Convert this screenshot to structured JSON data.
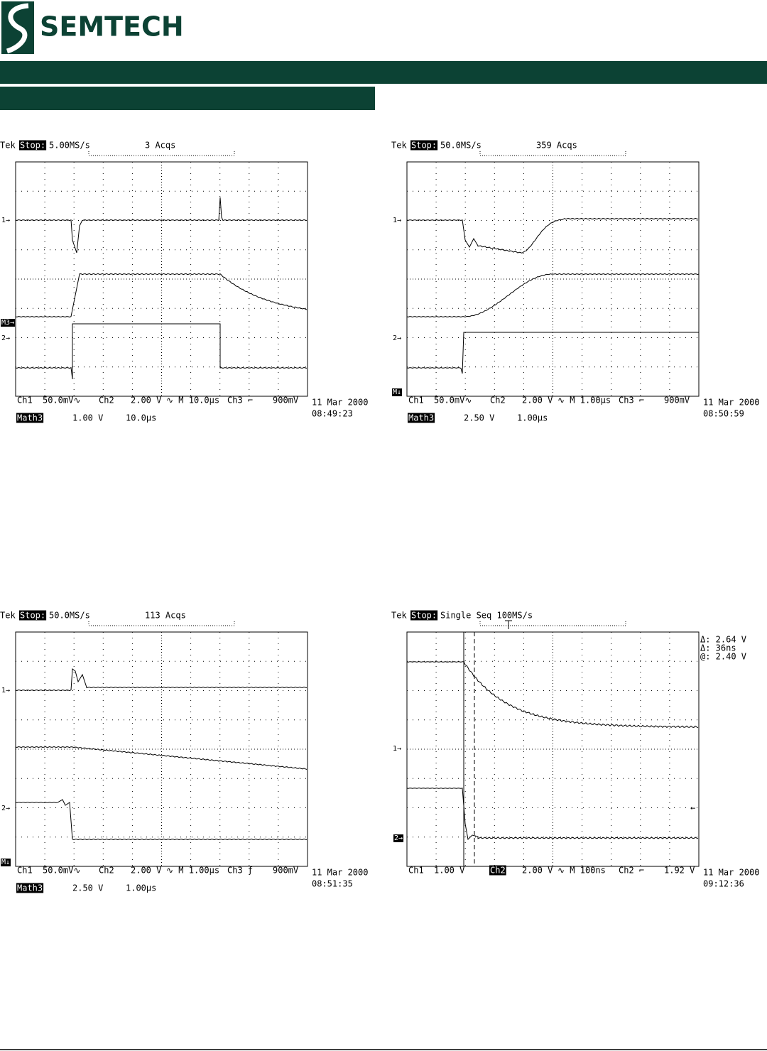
{
  "header": {
    "logo": "SEMTECH"
  },
  "scopes": [
    {
      "brand": "Tek",
      "state": "Stop:",
      "rate": "5.00MS/s",
      "acqs": "3 Acqs",
      "markers": [
        "1→",
        "M3→",
        "2→"
      ],
      "settings": [
        "Ch1",
        "50.0mV∿",
        "Ch2",
        "2.00 V",
        "∿ M 10.0µs",
        "Ch3 ⌐",
        "900mV"
      ],
      "math": [
        "Math3",
        "1.00 V",
        "10.0µs"
      ],
      "date": "11 Mar 2000",
      "time": "08:49:23"
    },
    {
      "brand": "Tek",
      "state": "Stop:",
      "rate": "50.0MS/s",
      "acqs": "359 Acqs",
      "markers": [
        "1→",
        "2→",
        "M↓"
      ],
      "settings": [
        "Ch1",
        "50.0mV∿",
        "Ch2",
        "2.00 V",
        "∿ M 1.00µs",
        "Ch3 ⌐",
        "900mV"
      ],
      "math": [
        "Math3",
        "2.50 V",
        "1.00µs"
      ],
      "date": "11 Mar 2000",
      "time": "08:50:59"
    },
    {
      "brand": "Tek",
      "state": "Stop:",
      "rate": "50.0MS/s",
      "acqs": "113 Acqs",
      "markers": [
        "1→",
        "2→",
        "M↓"
      ],
      "settings": [
        "Ch1",
        "50.0mV∿",
        "Ch2",
        "2.00 V",
        "∿ M 1.00µs",
        "Ch3 ƒ",
        "900mV"
      ],
      "math": [
        "Math3",
        "2.50 V",
        "1.00µs"
      ],
      "date": "11 Mar 2000",
      "time": "08:51:35"
    },
    {
      "brand": "Tek",
      "state": "Stop:",
      "rate": "Single Seq  100MS/s",
      "markers": [
        "1→",
        "2→"
      ],
      "settings": [
        "Ch1",
        "1.00 V",
        "Ch2",
        "2.00 V",
        "∿ M  100ns",
        "Ch2 ⌐",
        "1.92 V"
      ],
      "readouts": [
        "Δ: 2.64 V",
        "Δ: 36ns",
        "@: 2.40 V"
      ],
      "date": "11 Mar 2000",
      "time": "09:12:36"
    }
  ]
}
